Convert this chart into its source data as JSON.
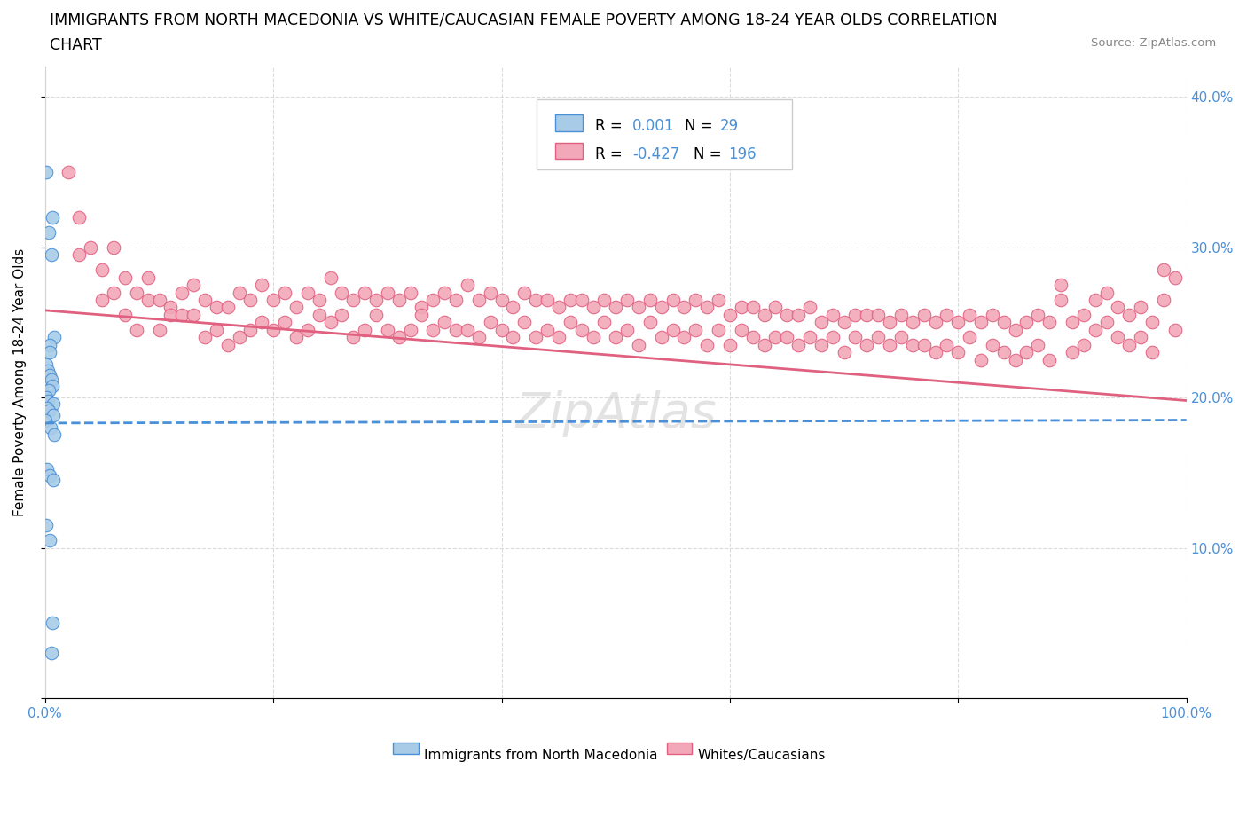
{
  "title_line1": "IMMIGRANTS FROM NORTH MACEDONIA VS WHITE/CAUCASIAN FEMALE POVERTY AMONG 18-24 YEAR OLDS CORRELATION",
  "title_line2": "CHART",
  "source": "Source: ZipAtlas.com",
  "ylabel": "Female Poverty Among 18-24 Year Olds",
  "xlim": [
    0.0,
    1.0
  ],
  "ylim": [
    0.0,
    0.42
  ],
  "x_ticks": [
    0.0,
    0.2,
    0.4,
    0.6,
    0.8,
    1.0
  ],
  "x_tick_labels": [
    "0.0%",
    "",
    "",
    "",
    "",
    "100.0%"
  ],
  "y_ticks": [
    0.0,
    0.1,
    0.2,
    0.3,
    0.4
  ],
  "y_tick_labels": [
    "",
    "10.0%",
    "20.0%",
    "30.0%",
    "40.0%"
  ],
  "color_blue": "#a8cce8",
  "color_pink": "#f2a8b8",
  "trendline_blue_color": "#4a90d9",
  "trendline_pink_color": "#e06080",
  "blue_scatter_y": [
    0.35,
    0.32,
    0.31,
    0.295,
    0.24,
    0.235,
    0.23,
    0.222,
    0.218,
    0.215,
    0.212,
    0.208,
    0.205,
    0.2,
    0.198,
    0.196,
    0.193,
    0.191,
    0.188,
    0.185,
    0.18,
    0.175,
    0.152,
    0.148,
    0.145,
    0.115,
    0.105,
    0.05,
    0.03
  ],
  "blue_trend_x": [
    0.0,
    1.0
  ],
  "blue_trend_y": [
    0.183,
    0.185
  ],
  "pink_trend_x": [
    0.0,
    1.0
  ],
  "pink_trend_y": [
    0.258,
    0.198
  ],
  "pink_scatter": [
    [
      0.02,
      0.35
    ],
    [
      0.03,
      0.32
    ],
    [
      0.03,
      0.295
    ],
    [
      0.04,
      0.3
    ],
    [
      0.05,
      0.285
    ],
    [
      0.05,
      0.265
    ],
    [
      0.06,
      0.3
    ],
    [
      0.06,
      0.27
    ],
    [
      0.07,
      0.28
    ],
    [
      0.07,
      0.255
    ],
    [
      0.08,
      0.27
    ],
    [
      0.08,
      0.245
    ],
    [
      0.09,
      0.265
    ],
    [
      0.09,
      0.28
    ],
    [
      0.1,
      0.265
    ],
    [
      0.1,
      0.245
    ],
    [
      0.11,
      0.26
    ],
    [
      0.11,
      0.255
    ],
    [
      0.12,
      0.27
    ],
    [
      0.12,
      0.255
    ],
    [
      0.13,
      0.275
    ],
    [
      0.13,
      0.255
    ],
    [
      0.14,
      0.265
    ],
    [
      0.14,
      0.24
    ],
    [
      0.15,
      0.26
    ],
    [
      0.15,
      0.245
    ],
    [
      0.16,
      0.26
    ],
    [
      0.16,
      0.235
    ],
    [
      0.17,
      0.27
    ],
    [
      0.17,
      0.24
    ],
    [
      0.18,
      0.265
    ],
    [
      0.18,
      0.245
    ],
    [
      0.19,
      0.275
    ],
    [
      0.19,
      0.25
    ],
    [
      0.2,
      0.265
    ],
    [
      0.2,
      0.245
    ],
    [
      0.21,
      0.27
    ],
    [
      0.21,
      0.25
    ],
    [
      0.22,
      0.26
    ],
    [
      0.22,
      0.24
    ],
    [
      0.23,
      0.27
    ],
    [
      0.23,
      0.245
    ],
    [
      0.24,
      0.265
    ],
    [
      0.24,
      0.255
    ],
    [
      0.25,
      0.28
    ],
    [
      0.25,
      0.25
    ],
    [
      0.26,
      0.27
    ],
    [
      0.26,
      0.255
    ],
    [
      0.27,
      0.265
    ],
    [
      0.27,
      0.24
    ],
    [
      0.28,
      0.27
    ],
    [
      0.28,
      0.245
    ],
    [
      0.29,
      0.265
    ],
    [
      0.29,
      0.255
    ],
    [
      0.3,
      0.27
    ],
    [
      0.3,
      0.245
    ],
    [
      0.31,
      0.265
    ],
    [
      0.31,
      0.24
    ],
    [
      0.32,
      0.27
    ],
    [
      0.32,
      0.245
    ],
    [
      0.33,
      0.26
    ],
    [
      0.33,
      0.255
    ],
    [
      0.34,
      0.265
    ],
    [
      0.34,
      0.245
    ],
    [
      0.35,
      0.27
    ],
    [
      0.35,
      0.25
    ],
    [
      0.36,
      0.265
    ],
    [
      0.36,
      0.245
    ],
    [
      0.37,
      0.275
    ],
    [
      0.37,
      0.245
    ],
    [
      0.38,
      0.265
    ],
    [
      0.38,
      0.24
    ],
    [
      0.39,
      0.27
    ],
    [
      0.39,
      0.25
    ],
    [
      0.4,
      0.265
    ],
    [
      0.4,
      0.245
    ],
    [
      0.41,
      0.26
    ],
    [
      0.41,
      0.24
    ],
    [
      0.42,
      0.27
    ],
    [
      0.42,
      0.25
    ],
    [
      0.43,
      0.265
    ],
    [
      0.43,
      0.24
    ],
    [
      0.44,
      0.265
    ],
    [
      0.44,
      0.245
    ],
    [
      0.45,
      0.26
    ],
    [
      0.45,
      0.24
    ],
    [
      0.46,
      0.265
    ],
    [
      0.46,
      0.25
    ],
    [
      0.47,
      0.265
    ],
    [
      0.47,
      0.245
    ],
    [
      0.48,
      0.26
    ],
    [
      0.48,
      0.24
    ],
    [
      0.49,
      0.265
    ],
    [
      0.49,
      0.25
    ],
    [
      0.5,
      0.26
    ],
    [
      0.5,
      0.24
    ],
    [
      0.51,
      0.265
    ],
    [
      0.51,
      0.245
    ],
    [
      0.52,
      0.26
    ],
    [
      0.52,
      0.235
    ],
    [
      0.53,
      0.265
    ],
    [
      0.53,
      0.25
    ],
    [
      0.54,
      0.26
    ],
    [
      0.54,
      0.24
    ],
    [
      0.55,
      0.265
    ],
    [
      0.55,
      0.245
    ],
    [
      0.56,
      0.26
    ],
    [
      0.56,
      0.24
    ],
    [
      0.57,
      0.265
    ],
    [
      0.57,
      0.245
    ],
    [
      0.58,
      0.26
    ],
    [
      0.58,
      0.235
    ],
    [
      0.59,
      0.265
    ],
    [
      0.59,
      0.245
    ],
    [
      0.6,
      0.255
    ],
    [
      0.6,
      0.235
    ],
    [
      0.61,
      0.26
    ],
    [
      0.61,
      0.245
    ],
    [
      0.62,
      0.26
    ],
    [
      0.62,
      0.24
    ],
    [
      0.63,
      0.255
    ],
    [
      0.63,
      0.235
    ],
    [
      0.64,
      0.26
    ],
    [
      0.64,
      0.24
    ],
    [
      0.65,
      0.255
    ],
    [
      0.65,
      0.24
    ],
    [
      0.66,
      0.255
    ],
    [
      0.66,
      0.235
    ],
    [
      0.67,
      0.26
    ],
    [
      0.67,
      0.24
    ],
    [
      0.68,
      0.25
    ],
    [
      0.68,
      0.235
    ],
    [
      0.69,
      0.255
    ],
    [
      0.69,
      0.24
    ],
    [
      0.7,
      0.25
    ],
    [
      0.7,
      0.23
    ],
    [
      0.71,
      0.255
    ],
    [
      0.71,
      0.24
    ],
    [
      0.72,
      0.255
    ],
    [
      0.72,
      0.235
    ],
    [
      0.73,
      0.255
    ],
    [
      0.73,
      0.24
    ],
    [
      0.74,
      0.25
    ],
    [
      0.74,
      0.235
    ],
    [
      0.75,
      0.255
    ],
    [
      0.75,
      0.24
    ],
    [
      0.76,
      0.25
    ],
    [
      0.76,
      0.235
    ],
    [
      0.77,
      0.255
    ],
    [
      0.77,
      0.235
    ],
    [
      0.78,
      0.25
    ],
    [
      0.78,
      0.23
    ],
    [
      0.79,
      0.255
    ],
    [
      0.79,
      0.235
    ],
    [
      0.8,
      0.25
    ],
    [
      0.8,
      0.23
    ],
    [
      0.81,
      0.255
    ],
    [
      0.81,
      0.24
    ],
    [
      0.82,
      0.25
    ],
    [
      0.82,
      0.225
    ],
    [
      0.83,
      0.255
    ],
    [
      0.83,
      0.235
    ],
    [
      0.84,
      0.25
    ],
    [
      0.84,
      0.23
    ],
    [
      0.85,
      0.245
    ],
    [
      0.85,
      0.225
    ],
    [
      0.86,
      0.25
    ],
    [
      0.86,
      0.23
    ],
    [
      0.87,
      0.255
    ],
    [
      0.87,
      0.235
    ],
    [
      0.88,
      0.25
    ],
    [
      0.88,
      0.225
    ],
    [
      0.89,
      0.275
    ],
    [
      0.89,
      0.265
    ],
    [
      0.9,
      0.25
    ],
    [
      0.9,
      0.23
    ],
    [
      0.91,
      0.255
    ],
    [
      0.91,
      0.235
    ],
    [
      0.92,
      0.265
    ],
    [
      0.92,
      0.245
    ],
    [
      0.93,
      0.27
    ],
    [
      0.93,
      0.25
    ],
    [
      0.94,
      0.26
    ],
    [
      0.94,
      0.24
    ],
    [
      0.95,
      0.255
    ],
    [
      0.95,
      0.235
    ],
    [
      0.96,
      0.26
    ],
    [
      0.96,
      0.24
    ],
    [
      0.97,
      0.25
    ],
    [
      0.97,
      0.23
    ],
    [
      0.98,
      0.285
    ],
    [
      0.98,
      0.265
    ],
    [
      0.99,
      0.28
    ],
    [
      0.99,
      0.245
    ]
  ]
}
